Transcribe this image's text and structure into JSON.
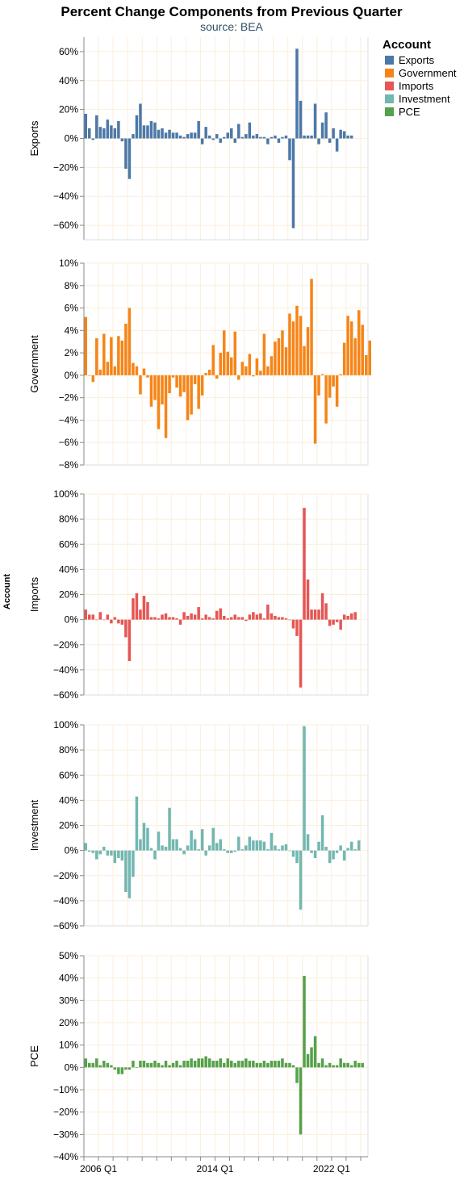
{
  "chart_data": {
    "type": "bar",
    "title": "Percent Change Components from Previous Quarter",
    "subtitle": "source: BEA",
    "row_title": "Account",
    "legend": {
      "title": "Account",
      "position": "top-right"
    },
    "grid": true,
    "x_start": "2005 Q1",
    "x_ticks": [
      "2006 Q1",
      "2014 Q1",
      "2022 Q1"
    ],
    "panels": [
      {
        "name": "Exports",
        "color": "#4c78a8",
        "ylim": [
          -70,
          70
        ],
        "yticks": [
          60,
          40,
          20,
          0,
          -20,
          -40,
          -60
        ],
        "tick_labels": [
          "60%",
          "40%",
          "20%",
          "0%",
          "−20%",
          "−40%",
          "−60%"
        ],
        "values": [
          17,
          7,
          -1,
          16,
          8,
          7,
          13,
          9,
          7,
          12,
          -2,
          -21,
          -28,
          3,
          16,
          24,
          9,
          9,
          12,
          11,
          6,
          7,
          4,
          6,
          4,
          4,
          2,
          1,
          3,
          4,
          4,
          12,
          -4,
          8,
          2,
          -1,
          3,
          -3,
          1,
          4,
          7,
          -3,
          10,
          1,
          3,
          11,
          2,
          3,
          1,
          1,
          -4,
          1,
          2,
          -3,
          1,
          2,
          -15,
          -62,
          62,
          26,
          2,
          2,
          2,
          24,
          -4,
          11,
          18,
          -3,
          7,
          -9,
          6,
          5,
          2,
          2
        ]
      },
      {
        "name": "Government",
        "color": "#f58518",
        "ylim": [
          -8,
          10
        ],
        "yticks": [
          10,
          8,
          6,
          4,
          2,
          0,
          -2,
          -4,
          -6,
          -8
        ],
        "tick_labels": [
          "10%",
          "8%",
          "6%",
          "4%",
          "2%",
          "0%",
          "−2%",
          "−4%",
          "−6%",
          "−8%"
        ],
        "values": [
          5.2,
          0,
          -0.6,
          3.3,
          0.5,
          3.7,
          1.2,
          3.4,
          0.8,
          3.5,
          3.1,
          4.6,
          6.0,
          1.1,
          0.8,
          -1.7,
          0.6,
          -0.2,
          -2.8,
          -2.2,
          -4.8,
          -2.6,
          -5.6,
          -1.6,
          -0.2,
          -1.1,
          -1.9,
          -1.5,
          -4.0,
          -3.5,
          -0.8,
          -3.0,
          -1.8,
          0.2,
          0.5,
          2.7,
          -0.3,
          2.0,
          4.0,
          2.1,
          1.6,
          3.9,
          -0.4,
          1.2,
          0.8,
          1.9,
          -0.1,
          1.5,
          0.4,
          3.7,
          0.8,
          1.7,
          3.0,
          3.3,
          4.0,
          2.5,
          5.5,
          4.8,
          6.2,
          5.3,
          2.6,
          4.3,
          8.6,
          -6.1,
          -1.8,
          0.1,
          -4.3,
          -2.0,
          -1.0,
          -2.8,
          0.1,
          2.9,
          5.3,
          4.8,
          3.3,
          5.8,
          4.5,
          1.8,
          3.1
        ]
      },
      {
        "name": "Imports",
        "color": "#e45756",
        "ylim": [
          -60,
          100
        ],
        "yticks": [
          100,
          80,
          60,
          40,
          20,
          0,
          -20,
          -40,
          -60
        ],
        "tick_labels": [
          "100%",
          "80%",
          "60%",
          "40%",
          "20%",
          "0%",
          "−20%",
          "−40%",
          "−60%"
        ],
        "values": [
          8,
          4,
          4,
          0,
          6,
          0,
          4,
          -3,
          2,
          -3,
          -4,
          -14,
          -33,
          17,
          21,
          8,
          19,
          14,
          2,
          2,
          1,
          4,
          5,
          2,
          2,
          1,
          -4,
          6,
          3,
          5,
          4,
          10,
          1,
          4,
          2,
          1,
          7,
          9,
          3,
          1,
          2,
          4,
          2,
          2,
          -1,
          4,
          6,
          4,
          5,
          1,
          12,
          5,
          3,
          2,
          2,
          1,
          0,
          -7,
          -13,
          -54,
          89,
          32,
          8,
          8,
          8,
          21,
          13,
          -5,
          -4,
          -2,
          -8,
          4,
          3,
          5,
          6
        ]
      },
      {
        "name": "Investment",
        "color": "#72b7b2",
        "ylim": [
          -60,
          100
        ],
        "yticks": [
          100,
          80,
          60,
          40,
          20,
          0,
          -20,
          -40,
          -60
        ],
        "tick_labels": [
          "100%",
          "80%",
          "60%",
          "40%",
          "20%",
          "0%",
          "−20%",
          "−40%",
          "−60%"
        ],
        "values": [
          6,
          -1,
          -2,
          -7,
          -3,
          3,
          -4,
          -4,
          -10,
          -6,
          -8,
          -33,
          -38,
          -21,
          43,
          9,
          22,
          18,
          2,
          -7,
          15,
          4,
          3,
          34,
          9,
          9,
          2,
          -3,
          4,
          16,
          9,
          1,
          17,
          -4,
          4,
          18,
          6,
          9,
          1,
          -2,
          -2,
          -1,
          11,
          1,
          4,
          11,
          8,
          8,
          8,
          7,
          1,
          14,
          4,
          1,
          4,
          5,
          0,
          -5,
          -10,
          -47,
          99,
          13,
          -2,
          -6,
          7,
          28,
          3,
          -10,
          -7,
          -2,
          4,
          -8,
          2,
          7,
          1,
          8
        ]
      },
      {
        "name": "PCE",
        "color": "#54a24b",
        "ylim": [
          -40,
          50
        ],
        "yticks": [
          50,
          40,
          30,
          20,
          10,
          0,
          -10,
          -20,
          -30,
          -40
        ],
        "tick_labels": [
          "50%",
          "40%",
          "30%",
          "20%",
          "10%",
          "0%",
          "−10%",
          "−20%",
          "−30%",
          "−40%"
        ],
        "values": [
          4,
          2,
          2,
          4,
          1,
          3,
          2,
          1,
          -1,
          -3,
          -3,
          -1,
          -1,
          3,
          0,
          3,
          3,
          2,
          2,
          3,
          2,
          1,
          3,
          1,
          2,
          3,
          1,
          3,
          3,
          4,
          3,
          4,
          4,
          5,
          4,
          3,
          3,
          4,
          2,
          4,
          3,
          2,
          3,
          3,
          4,
          3,
          3,
          2,
          2,
          3,
          2,
          3,
          3,
          3,
          4,
          2,
          2,
          1,
          -7,
          -30,
          41,
          6,
          9,
          14,
          2,
          4,
          1,
          2,
          1,
          1,
          4,
          2,
          2,
          1,
          3,
          2,
          2
        ]
      }
    ]
  }
}
